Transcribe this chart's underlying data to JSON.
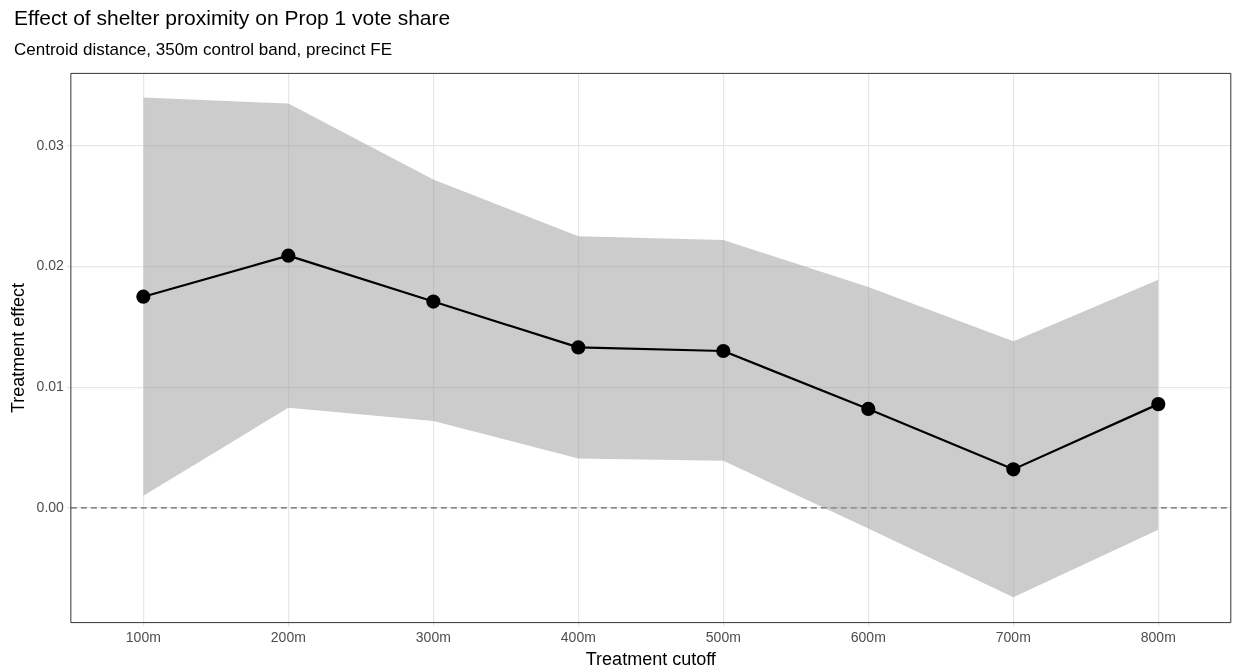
{
  "chart_data": {
    "type": "line",
    "title": "Effect of shelter proximity on Prop 1 vote share",
    "subtitle": "Centroid distance, 350m control band, precinct FE",
    "xlabel": "Treatment cutoff",
    "ylabel": "Treatment effect",
    "categories": [
      "100m",
      "200m",
      "300m",
      "400m",
      "500m",
      "600m",
      "700m",
      "800m"
    ],
    "series": [
      {
        "color": "#000000",
        "values": [
          0.0175,
          0.0209,
          0.0171,
          0.0133,
          0.013,
          0.0082,
          0.0032,
          0.0086
        ],
        "lower": [
          0.001,
          0.0083,
          0.0072,
          0.0041,
          0.0039,
          -0.0017,
          -0.0074,
          -0.0018
        ],
        "upper": [
          0.034,
          0.0335,
          0.0272,
          0.0225,
          0.0222,
          0.0183,
          0.0138,
          0.0189
        ]
      }
    ],
    "ylim": [
      -0.0095,
      0.036
    ],
    "yticks": [
      {
        "value": 0,
        "label": "0.00"
      },
      {
        "value": 0.01,
        "label": "0.01"
      },
      {
        "value": 0.02,
        "label": "0.02"
      },
      {
        "value": 0.03,
        "label": "0.03"
      }
    ],
    "ref_lines": [
      {
        "axis": "y",
        "value": 0,
        "color": "#666666",
        "line_style": "dashed"
      }
    ],
    "grid": true,
    "legend": false,
    "marker": "circle",
    "line_style": "solid"
  }
}
